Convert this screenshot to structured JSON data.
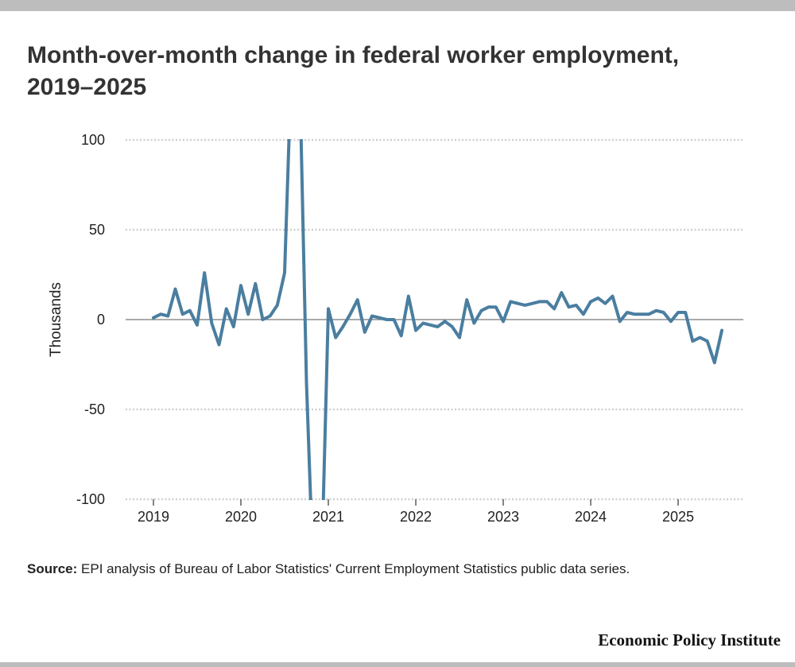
{
  "title": "Month-over-month change in federal worker employment, 2019–2025",
  "source": {
    "label": "Source:",
    "text": "EPI analysis of Bureau of Labor Statistics' Current Employment Statistics public data series."
  },
  "logo_text": "Economic Policy Institute",
  "colors": {
    "line": "#4a7ea0",
    "grid": "#cfcfcf",
    "zero_line": "#777777",
    "bars": "#bdbdbd"
  },
  "chart_data": {
    "type": "line",
    "title": "Month-over-month change in federal worker employment, 2019–2025",
    "xlabel": "",
    "ylabel": "Thousands",
    "ylim": [
      -100,
      100
    ],
    "xlim": [
      2019,
      2025.833
    ],
    "yticks": [
      100,
      50,
      0,
      -50,
      -100
    ],
    "yticklabels": [
      "100",
      "50",
      "0",
      "-50",
      "-100"
    ],
    "xticks": [
      2019,
      2020,
      2021,
      2022,
      2023,
      2024,
      2025
    ],
    "xticklabels": [
      "2019",
      "2020",
      "2021",
      "2022",
      "2023",
      "2024",
      "2025"
    ],
    "grid": "horizontal dotted",
    "clipped_to_ylim": true,
    "series": [
      {
        "x_start": "2019-01",
        "frequency": "monthly",
        "values": [
          1,
          3,
          2,
          17,
          3,
          5,
          -3,
          26,
          -2,
          -14,
          6,
          -4,
          19,
          3,
          20,
          0,
          2,
          8,
          26,
          150,
          150,
          -35,
          -150,
          -150,
          6,
          -10,
          -4,
          3,
          11,
          -7,
          2,
          1,
          0,
          0,
          -9,
          13,
          -6,
          -2,
          -3,
          -4,
          -1,
          -4,
          -10,
          11,
          -2,
          5,
          7,
          7,
          -1,
          10,
          9,
          8,
          9,
          10,
          10,
          6,
          15,
          7,
          8,
          3,
          10,
          12,
          9,
          13,
          -1,
          4,
          3,
          3,
          3,
          5,
          4,
          -1,
          4,
          4,
          -12,
          -10,
          -12,
          -24,
          -6
        ]
      }
    ]
  }
}
